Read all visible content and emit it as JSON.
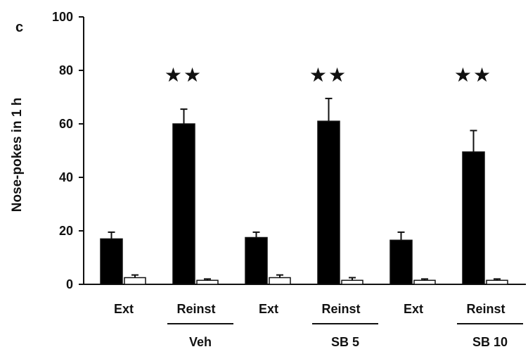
{
  "chart_data": {
    "type": "bar",
    "panel_label": "c",
    "ylabel": "Nose-pokes  in 1 h",
    "ylim": [
      0,
      100
    ],
    "yticks": [
      "0",
      "20",
      "40",
      "60",
      "80",
      "100"
    ],
    "categories": [
      "Ext",
      "Reinst",
      "Ext",
      "Reinst",
      "Ext",
      "Reinst"
    ],
    "groups": [
      {
        "label": "Veh",
        "categories": [
          0,
          1
        ]
      },
      {
        "label": "SB 5",
        "categories": [
          2,
          3
        ]
      },
      {
        "label": "SB 10",
        "categories": [
          4,
          5
        ]
      }
    ],
    "series": [
      {
        "fill": "#000000",
        "values": [
          17,
          60,
          17.5,
          61,
          16.5,
          49.5
        ],
        "errors": [
          2.5,
          5.5,
          2,
          8.5,
          3,
          8
        ]
      },
      {
        "fill": "#ffffff",
        "values": [
          2.5,
          1.5,
          2.5,
          1.5,
          1.5,
          1.5
        ],
        "errors": [
          1,
          0.5,
          1,
          1,
          0.5,
          0.5
        ]
      }
    ],
    "annotations": [
      {
        "text": "★★",
        "category": 1
      },
      {
        "text": "★★",
        "category": 3
      },
      {
        "text": "★★",
        "category": 5
      }
    ],
    "grid": false,
    "legend": "none"
  }
}
